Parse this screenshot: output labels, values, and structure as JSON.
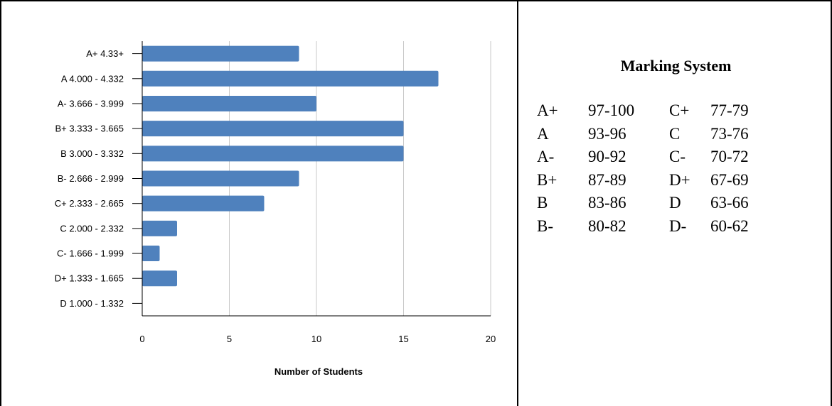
{
  "chart_data": {
    "type": "bar",
    "orientation": "horizontal",
    "categories": [
      "A+ 4.33+",
      "A 4.000 - 4.332",
      "A- 3.666 - 3.999",
      "B+ 3.333 - 3.665",
      "B 3.000 - 3.332",
      "B- 2.666 - 2.999",
      "C+ 2.333 - 2.665",
      "C 2.000 - 2.332",
      "C- 1.666 - 1.999",
      "D+ 1.333 - 1.665",
      "D 1.000 - 1.332"
    ],
    "values": [
      9,
      17,
      10,
      15,
      15,
      9,
      7,
      2,
      1,
      2,
      0
    ],
    "xlabel": "Number of Students",
    "ylabel": "",
    "xlim": [
      0,
      20
    ],
    "xticks": [
      "0",
      "5",
      "10",
      "15",
      "20"
    ],
    "grid": true,
    "bar_color": "#4f81bd",
    "grid_color": "#c8c8c8"
  },
  "marking_system": {
    "title": "Marking System",
    "rows": [
      {
        "grade1": "A+",
        "range1": "97-100",
        "grade2": "C+",
        "range2": "77-79"
      },
      {
        "grade1": "A",
        "range1": "93-96",
        "grade2": "C",
        "range2": "73-76"
      },
      {
        "grade1": "A-",
        "range1": "90-92",
        "grade2": "C-",
        "range2": "70-72"
      },
      {
        "grade1": "B+",
        "range1": "87-89",
        "grade2": "D+",
        "range2": "67-69"
      },
      {
        "grade1": "B",
        "range1": "83-86",
        "grade2": "D",
        "range2": "63-66"
      },
      {
        "grade1": "B-",
        "range1": "80-82",
        "grade2": "D-",
        "range2": "60-62"
      }
    ]
  }
}
